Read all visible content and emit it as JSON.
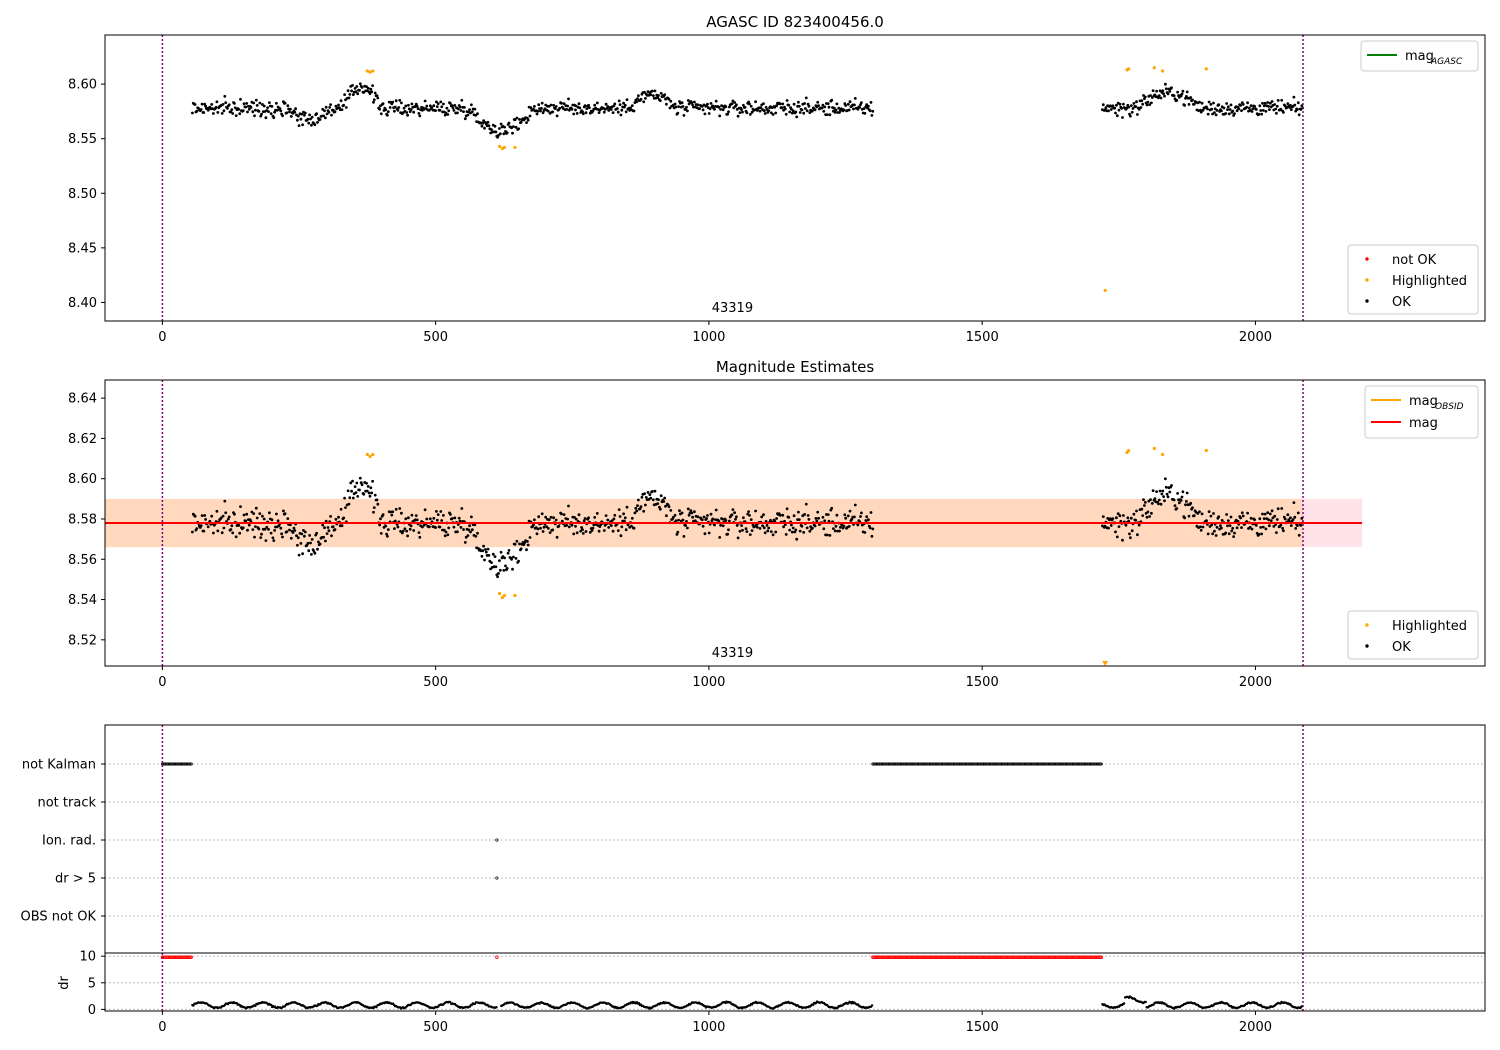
{
  "chart_data": [
    {
      "type": "scatter",
      "title": "AGASC ID 823400456.0",
      "ylabel": "",
      "xlabel": "",
      "xlim": [
        -105,
        2420
      ],
      "ylim": [
        8.383,
        8.645
      ],
      "x_ticks": [
        0,
        500,
        1000,
        1500,
        2000
      ],
      "y_ticks": [
        8.4,
        8.45,
        8.5,
        8.55,
        8.6
      ],
      "y_tick_labels": [
        "8.40",
        "8.45",
        "8.50",
        "8.55",
        "8.60"
      ],
      "vlines": [
        0,
        2087
      ],
      "obsid_label": {
        "text": "43319",
        "x": 1043
      },
      "legend_lines": [
        {
          "label": "mag",
          "sub": "AGASC",
          "color": "#008000"
        }
      ],
      "legend_points": [
        {
          "label": "not OK",
          "color": "#ff0000"
        },
        {
          "label": "Highlighted",
          "color": "#ffa500"
        },
        {
          "label": "OK",
          "color": "#000000"
        }
      ],
      "series": [
        {
          "name": "OK",
          "color": "#000000",
          "kind": "main",
          "segments": [
            {
              "x0": 55,
              "x1": 1300
            },
            {
              "x0": 1720,
              "x1": 2087
            }
          ],
          "base": 8.578
        },
        {
          "name": "Highlighted",
          "color": "#ffa500",
          "points": [
            [
              375,
              8.612
            ],
            [
              380,
              8.611
            ],
            [
              385,
              8.612
            ],
            [
              617,
              8.543
            ],
            [
              622,
              8.541
            ],
            [
              626,
              8.542
            ],
            [
              645,
              8.542
            ],
            [
              1725,
              8.411
            ],
            [
              1765,
              8.613
            ],
            [
              1768,
              8.614
            ],
            [
              1815,
              8.615
            ],
            [
              1830,
              8.612
            ],
            [
              1910,
              8.614
            ]
          ]
        }
      ]
    },
    {
      "type": "scatter",
      "title": "Magnitude Estimates",
      "xlabel": "",
      "ylabel": "",
      "xlim": [
        -105,
        2420
      ],
      "ylim": [
        8.507,
        8.649
      ],
      "x_ticks": [
        0,
        500,
        1000,
        1500,
        2000
      ],
      "y_ticks": [
        8.52,
        8.54,
        8.56,
        8.58,
        8.6,
        8.62,
        8.64
      ],
      "y_tick_labels": [
        "8.52",
        "8.54",
        "8.56",
        "8.58",
        "8.60",
        "8.62",
        "8.64"
      ],
      "vlines": [
        0,
        2087
      ],
      "obsid_label": {
        "text": "43319",
        "x": 1043
      },
      "mag_line": {
        "value": 8.578,
        "color": "#ff0000"
      },
      "mag_band": {
        "low": 8.566,
        "high": 8.59,
        "x0": -105,
        "x1": 2195,
        "color": "#ffc0cb"
      },
      "obsid_band": {
        "low": 8.566,
        "high": 8.59,
        "x0": -105,
        "x1": 2087,
        "color": "#ffa500",
        "value": 8.578
      },
      "legend_lines": [
        {
          "label": "mag",
          "sub": "OBSID",
          "color": "#ffa500"
        },
        {
          "label": "mag",
          "sub": "",
          "color": "#ff0000"
        }
      ],
      "legend_points": [
        {
          "label": "Highlighted",
          "color": "#ffa500"
        },
        {
          "label": "OK",
          "color": "#000000"
        }
      ],
      "series": [
        {
          "name": "OK",
          "color": "#000000",
          "kind": "main",
          "segments": [
            {
              "x0": 55,
              "x1": 1300
            },
            {
              "x0": 1720,
              "x1": 2087
            }
          ],
          "base": 8.578
        },
        {
          "name": "Highlighted",
          "color": "#ffa500",
          "points": [
            [
              375,
              8.612
            ],
            [
              380,
              8.611
            ],
            [
              385,
              8.612
            ],
            [
              617,
              8.543
            ],
            [
              622,
              8.541
            ],
            [
              626,
              8.542
            ],
            [
              645,
              8.542
            ],
            [
              1765,
              8.613
            ],
            [
              1768,
              8.614
            ],
            [
              1815,
              8.615
            ],
            [
              1830,
              8.612
            ],
            [
              1910,
              8.614
            ]
          ]
        },
        {
          "name": "Highlighted (below range)",
          "color": "#ffa500",
          "marker": "triangle-down",
          "points": [
            [
              1725,
              8.508
            ]
          ]
        }
      ]
    },
    {
      "type": "scatter",
      "title": "",
      "xlim": [
        -105,
        2420
      ],
      "x_ticks": [
        0,
        500,
        1000,
        1500,
        2000
      ],
      "vlines": [
        0,
        2087
      ],
      "flag_rows": [
        "not Kalman",
        "not track",
        "Ion. rad.",
        "dr > 5",
        "OBS not OK"
      ],
      "flags": [
        {
          "row": "not Kalman",
          "ranges": [
            [
              0,
              55
            ],
            [
              1300,
              1720
            ]
          ]
        },
        {
          "row": "Ion. rad.",
          "points": [
            612
          ]
        },
        {
          "row": "dr > 5",
          "points": [
            612
          ]
        }
      ],
      "dr": {
        "ylabel": "dr",
        "ylim": [
          -0.3,
          10.6
        ],
        "y_ticks": [
          0,
          5,
          10
        ],
        "y_tick_labels": [
          "0",
          "5",
          "10"
        ],
        "red_ranges": [
          [
            0,
            55
          ],
          [
            612,
            614
          ],
          [
            1300,
            1720
          ]
        ],
        "red_value": 9.8,
        "black_segments": [
          [
            55,
            612
          ],
          [
            620,
            1300
          ],
          [
            1720,
            2087
          ]
        ],
        "black_level": 0.8
      }
    }
  ]
}
